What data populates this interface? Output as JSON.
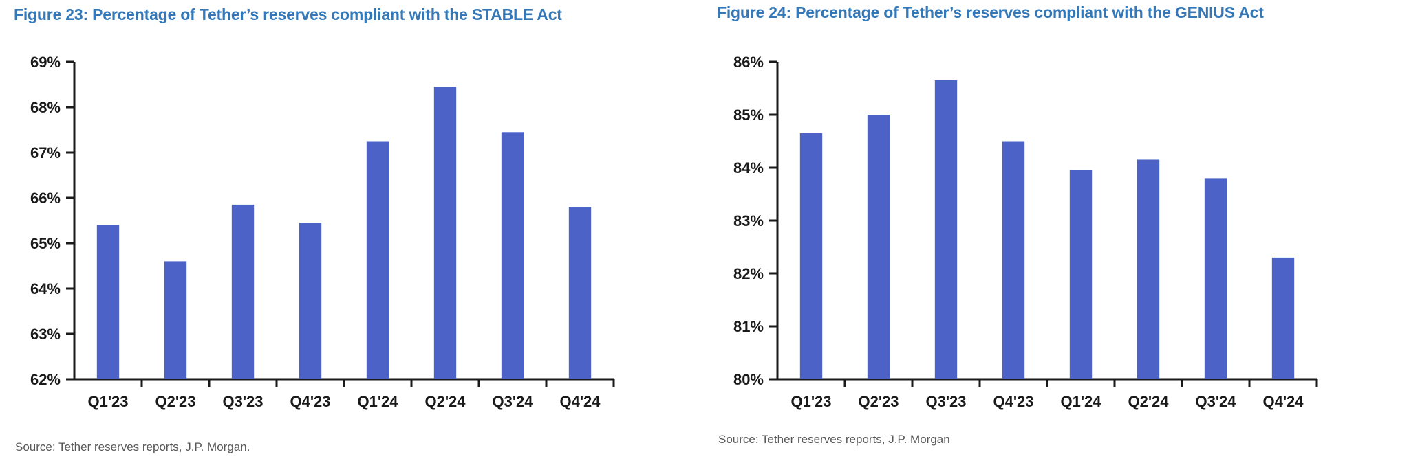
{
  "colors": {
    "bar": "#4C62C6",
    "title": "#3478B8",
    "axis": "#1A1A1A",
    "tick_label": "#1A1A1A",
    "source": "#575757",
    "background": "#FFFFFF"
  },
  "chart_data": [
    {
      "type": "bar",
      "figure_label": "Figure 23",
      "title": "Figure 23: Percentage of Tether’s reserves compliant with the STABLE Act",
      "categories": [
        "Q1'23",
        "Q2'23",
        "Q3'23",
        "Q4'23",
        "Q1'24",
        "Q2'24",
        "Q3'24",
        "Q4'24"
      ],
      "values": [
        65.4,
        64.6,
        65.85,
        65.45,
        67.25,
        68.45,
        67.45,
        65.8
      ],
      "unit": "%",
      "ylim": [
        62,
        69
      ],
      "y_tick_step": 1,
      "y_tick_labels": [
        "62%",
        "63%",
        "64%",
        "65%",
        "66%",
        "67%",
        "68%",
        "69%"
      ],
      "xlabel": "",
      "ylabel": "",
      "grid": false,
      "legend": "none",
      "source": "Source: Tether reserves reports, J.P. Morgan."
    },
    {
      "type": "bar",
      "figure_label": "Figure 24",
      "title": "Figure 24: Percentage of Tether’s reserves compliant with the GENIUS Act",
      "categories": [
        "Q1'23",
        "Q2'23",
        "Q3'23",
        "Q4'23",
        "Q1'24",
        "Q2'24",
        "Q3'24",
        "Q4'24"
      ],
      "values": [
        84.65,
        85.0,
        85.65,
        84.5,
        83.95,
        84.15,
        83.8,
        82.3
      ],
      "unit": "%",
      "ylim": [
        80,
        86
      ],
      "y_tick_step": 1,
      "y_tick_labels": [
        "80%",
        "81%",
        "82%",
        "83%",
        "84%",
        "85%",
        "86%"
      ],
      "xlabel": "",
      "ylabel": "",
      "grid": false,
      "legend": "none",
      "source": "Source: Tether reserves reports, J.P. Morgan"
    }
  ]
}
